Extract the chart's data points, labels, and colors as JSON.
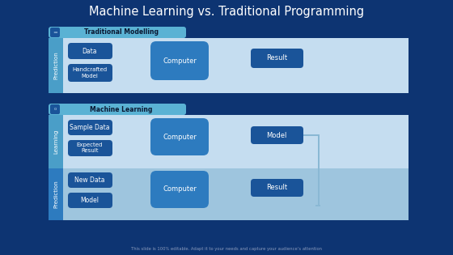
{
  "title": "Machine Learning vs. Traditional Programming",
  "title_color": "#ffffff",
  "title_fontsize": 11,
  "bg_color": "#0d3472",
  "footer_text": "This slide is 100% editable. Adapt it to your needs and capture your audience’s attention",
  "section1_label": "Traditional Modelling",
  "section1_row_label": "Prediction",
  "section1_boxes_left": [
    "Data",
    "Handcrafted\nModel"
  ],
  "section1_box_mid": "Computer",
  "section1_box_right": "Result",
  "section2_label": "Machine Learning",
  "section2_row1_label": "Learning",
  "section2_row1_boxes_left": [
    "Sample Data",
    "Expected\nResult"
  ],
  "section2_row1_box_mid": "Computer",
  "section2_row1_box_right": "Model",
  "section2_row2_label": "Prediction",
  "section2_row2_boxes_left": [
    "New Data",
    "Model"
  ],
  "section2_row2_box_mid": "Computer",
  "section2_row2_box_right": "Result",
  "panel_bg_light": "#c5ddf0",
  "panel_bg_med": "#9ec5de",
  "panel_bg_dark": "#7aafcf",
  "box_dark": "#1a5499",
  "box_mid": "#2d7bbf",
  "strip_blue": "#4a9ec8",
  "header_tab": "#5ab2d4",
  "text_white": "#ffffff",
  "text_navy": "#0a1832"
}
